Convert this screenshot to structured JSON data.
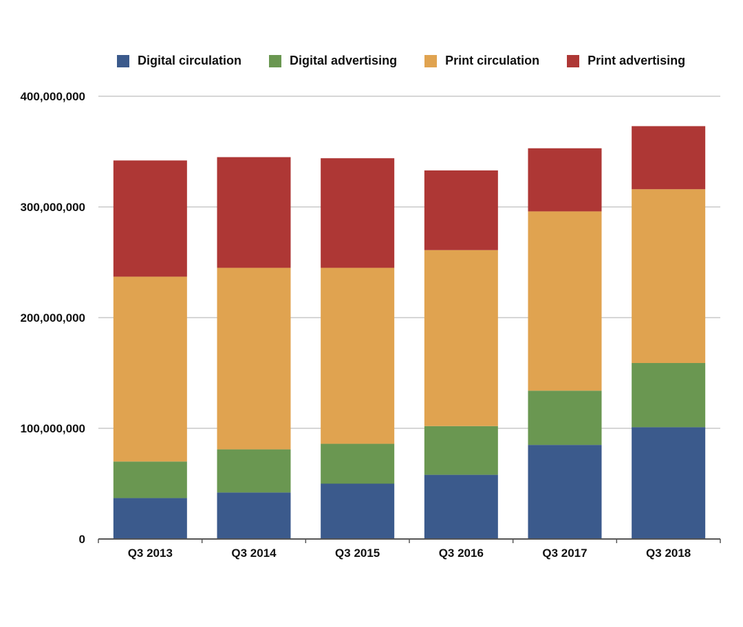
{
  "chart_data": {
    "type": "bar",
    "stacked": true,
    "title": "",
    "xlabel": "",
    "ylabel": "",
    "ylim": [
      0,
      400000000
    ],
    "yticks": [
      0,
      100000000,
      200000000,
      300000000,
      400000000
    ],
    "ytick_labels": [
      "0",
      "100,000,000",
      "200,000,000",
      "300,000,000",
      "400,000,000"
    ],
    "categories": [
      "Q3 2013",
      "Q3 2014",
      "Q3 2015",
      "Q3 2016",
      "Q3 2017",
      "Q3 2018"
    ],
    "series": [
      {
        "name": "Digital circulation",
        "color": "#3b5a8c",
        "values": [
          37000000,
          42000000,
          50000000,
          58000000,
          85000000,
          101000000
        ]
      },
      {
        "name": "Digital advertising",
        "color": "#6a9751",
        "values": [
          33000000,
          39000000,
          36000000,
          44000000,
          49000000,
          58000000
        ]
      },
      {
        "name": "Print circulation",
        "color": "#e0a350",
        "values": [
          167000000,
          164000000,
          159000000,
          159000000,
          162000000,
          157000000
        ]
      },
      {
        "name": "Print advertising",
        "color": "#ae3735",
        "values": [
          105000000,
          100000000,
          99000000,
          72000000,
          57000000,
          57000000
        ]
      }
    ],
    "grid": true,
    "legend_position": "top"
  }
}
